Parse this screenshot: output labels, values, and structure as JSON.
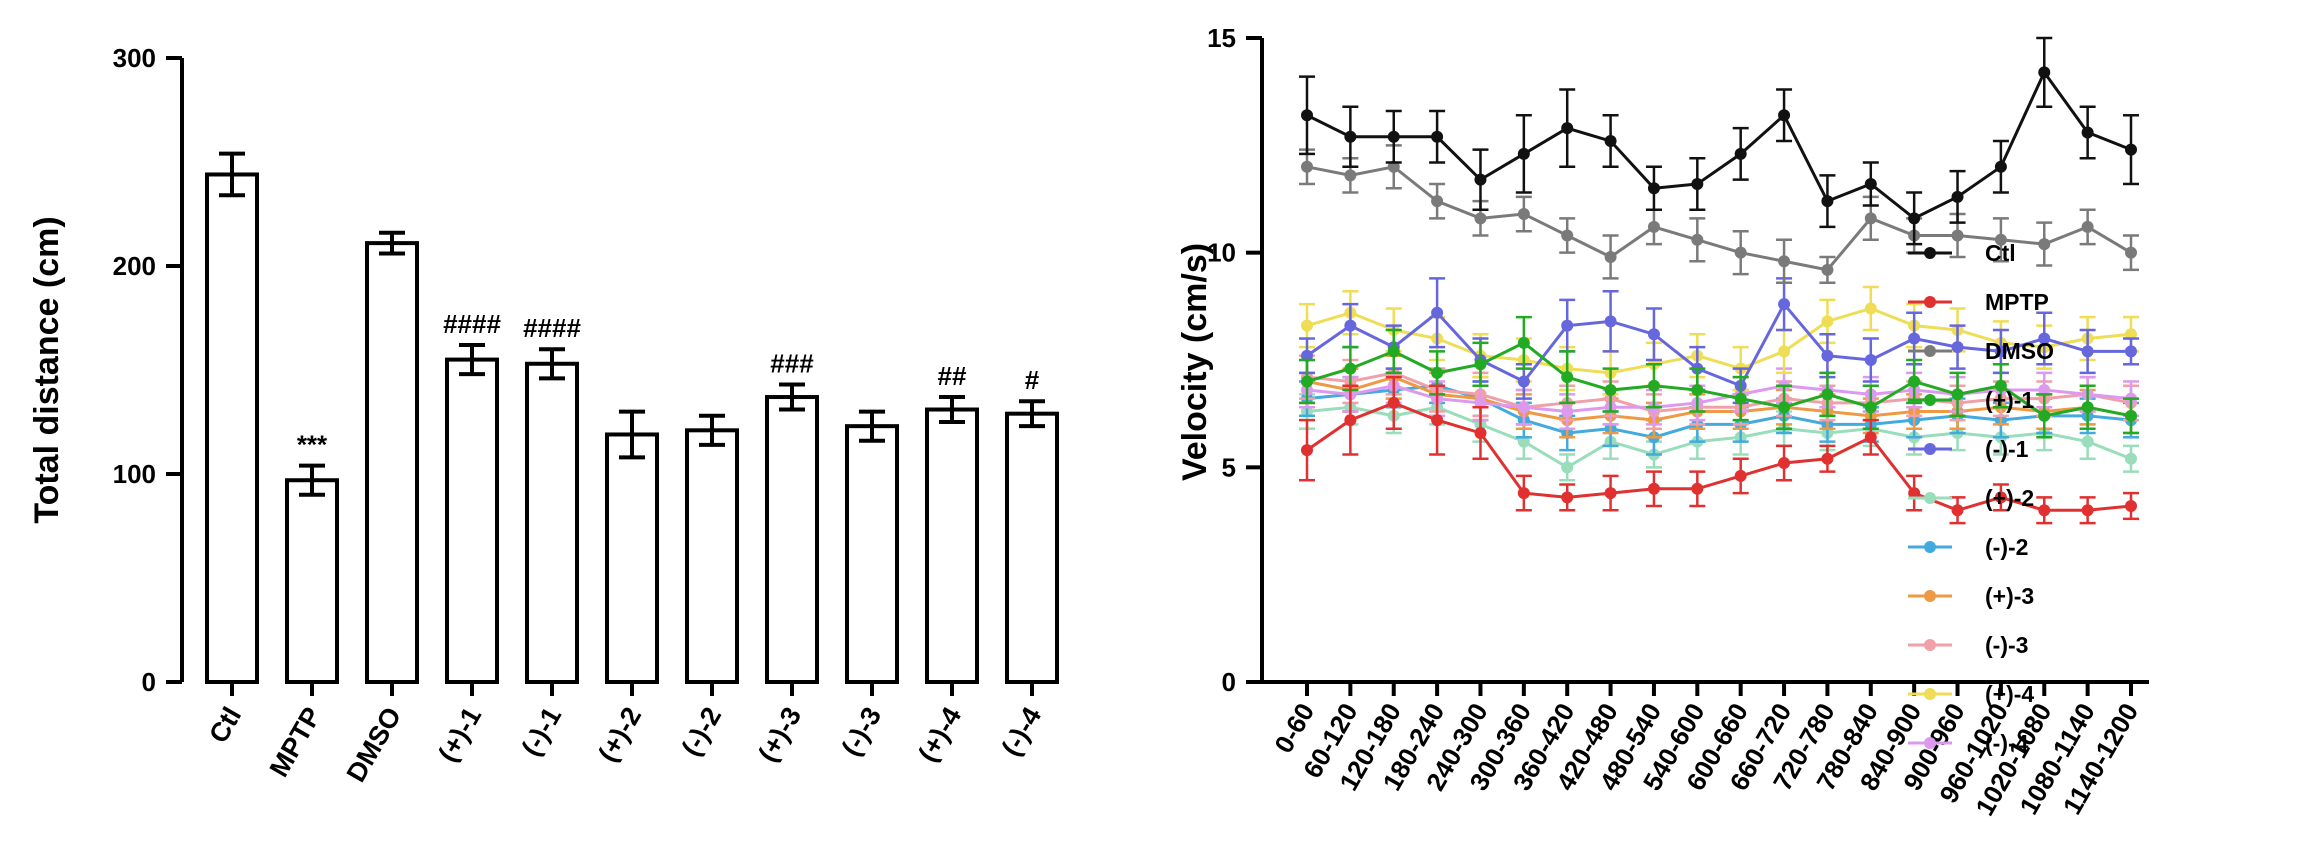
{
  "chart_data": [
    {
      "type": "bar",
      "ylabel": "Total distance (cm)",
      "xlabel": "",
      "ylim": [
        0,
        300
      ],
      "yticks": [
        0,
        100,
        200,
        300
      ],
      "categories": [
        "Ctl",
        "MPTP",
        "DMSO",
        "(+)-1",
        "(-)-1",
        "(+)-2",
        "(-)-2",
        "(+)-3",
        "(-)-3",
        "(+)-4",
        "(-)-4"
      ],
      "values": [
        244,
        97,
        211,
        155,
        153,
        119,
        121,
        137,
        123,
        131,
        129
      ],
      "errors": [
        10,
        7,
        5,
        7,
        7,
        11,
        7,
        6,
        7,
        6,
        6
      ],
      "annotations": [
        "",
        "***",
        "",
        "####",
        "####",
        "",
        "",
        "###",
        "",
        "##",
        "#"
      ]
    },
    {
      "type": "line",
      "ylabel": "Velocity (cm/s)",
      "xlabel": "",
      "ylim": [
        0,
        15
      ],
      "yticks": [
        0,
        5,
        10,
        15
      ],
      "categories": [
        "0-60",
        "60-120",
        "120-180",
        "180-240",
        "240-300",
        "300-360",
        "360-420",
        "420-480",
        "480-540",
        "540-600",
        "600-660",
        "660-720",
        "720-780",
        "780-840",
        "840-900",
        "900-960",
        "960-1020",
        "1020-1080",
        "1080-1140",
        "1140-1200"
      ],
      "legend_position": "right",
      "series": [
        {
          "name": "Ctl",
          "color": "#111111",
          "values": [
            13.2,
            12.7,
            12.7,
            12.7,
            11.7,
            12.3,
            12.9,
            12.6,
            11.5,
            11.6,
            12.3,
            13.2,
            11.2,
            11.6,
            10.8,
            11.3,
            12.0,
            14.2,
            12.8,
            12.4
          ],
          "errors": [
            0.9,
            0.7,
            0.6,
            0.6,
            0.7,
            0.9,
            0.9,
            0.6,
            0.5,
            0.6,
            0.6,
            0.6,
            0.6,
            0.5,
            0.6,
            0.6,
            0.6,
            0.8,
            0.6,
            0.8
          ]
        },
        {
          "name": "MPTP",
          "color": "#e03030",
          "values": [
            5.4,
            6.1,
            6.5,
            6.1,
            5.8,
            4.4,
            4.3,
            4.4,
            4.5,
            4.5,
            4.8,
            5.1,
            5.2,
            5.7,
            4.4,
            4.0,
            4.3,
            4.0,
            4.0,
            4.1
          ],
          "errors": [
            0.7,
            0.8,
            0.6,
            0.8,
            0.6,
            0.4,
            0.3,
            0.4,
            0.4,
            0.4,
            0.4,
            0.4,
            0.3,
            0.4,
            0.4,
            0.3,
            0.3,
            0.3,
            0.3,
            0.3
          ]
        },
        {
          "name": "DMSO",
          "color": "#7a7a7a",
          "values": [
            12.0,
            11.8,
            12.0,
            11.2,
            10.8,
            10.9,
            10.4,
            9.9,
            10.6,
            10.3,
            10.0,
            9.8,
            9.6,
            10.8,
            10.4,
            10.4,
            10.3,
            10.2,
            10.6,
            10.0
          ],
          "errors": [
            0.4,
            0.4,
            0.5,
            0.4,
            0.4,
            0.4,
            0.4,
            0.5,
            0.4,
            0.5,
            0.5,
            0.5,
            0.3,
            0.5,
            0.4,
            0.5,
            0.5,
            0.5,
            0.4,
            0.4
          ]
        },
        {
          "name": "(+)-1",
          "color": "#22aa22",
          "values": [
            7.0,
            7.3,
            7.7,
            7.2,
            7.4,
            7.9,
            7.1,
            6.8,
            6.9,
            6.8,
            6.6,
            6.4,
            6.7,
            6.4,
            7.0,
            6.7,
            6.9,
            6.2,
            6.4,
            6.2
          ],
          "errors": [
            0.5,
            0.5,
            0.5,
            0.5,
            0.5,
            0.6,
            0.6,
            0.5,
            0.5,
            0.5,
            0.5,
            0.5,
            0.5,
            0.5,
            0.5,
            0.5,
            0.5,
            0.5,
            0.5,
            0.4
          ]
        },
        {
          "name": "(-)-1",
          "color": "#6666dd",
          "values": [
            7.6,
            8.3,
            7.8,
            8.6,
            7.5,
            7.0,
            8.3,
            8.4,
            8.1,
            7.3,
            6.9,
            8.8,
            7.6,
            7.5,
            8.0,
            7.8,
            7.7,
            8.0,
            7.7,
            7.7
          ],
          "errors": [
            0.4,
            0.5,
            0.5,
            0.8,
            0.5,
            0.4,
            0.6,
            0.7,
            0.6,
            0.5,
            0.4,
            0.6,
            0.5,
            0.5,
            0.6,
            0.5,
            0.5,
            0.6,
            0.5,
            0.3
          ]
        },
        {
          "name": "(+)-2",
          "color": "#99ddbb",
          "values": [
            6.3,
            6.4,
            6.2,
            6.4,
            6.0,
            5.6,
            5.0,
            5.6,
            5.3,
            5.6,
            5.7,
            5.9,
            5.8,
            5.9,
            5.7,
            5.8,
            5.7,
            5.8,
            5.6,
            5.2
          ],
          "errors": [
            0.4,
            0.4,
            0.4,
            0.4,
            0.4,
            0.4,
            0.3,
            0.4,
            0.3,
            0.4,
            0.4,
            0.4,
            0.4,
            0.4,
            0.4,
            0.4,
            0.4,
            0.4,
            0.4,
            0.3
          ]
        },
        {
          "name": "(-)-2",
          "color": "#44aadd",
          "values": [
            6.6,
            6.7,
            6.8,
            6.9,
            6.6,
            6.1,
            5.8,
            5.9,
            5.7,
            6.0,
            6.0,
            6.2,
            6.0,
            6.0,
            6.1,
            6.2,
            6.1,
            6.2,
            6.2,
            6.1
          ],
          "errors": [
            0.4,
            0.4,
            0.4,
            0.4,
            0.4,
            0.4,
            0.4,
            0.4,
            0.4,
            0.4,
            0.4,
            0.4,
            0.4,
            0.4,
            0.4,
            0.4,
            0.4,
            0.4,
            0.4,
            0.4
          ]
        },
        {
          "name": "(+)-3",
          "color": "#ee9944",
          "values": [
            7.0,
            6.8,
            7.1,
            6.7,
            6.6,
            6.3,
            6.1,
            6.2,
            6.1,
            6.3,
            6.3,
            6.4,
            6.3,
            6.2,
            6.3,
            6.3,
            6.4,
            6.3,
            6.4,
            6.2
          ],
          "errors": [
            0.5,
            0.5,
            0.5,
            0.5,
            0.5,
            0.4,
            0.4,
            0.4,
            0.4,
            0.4,
            0.4,
            0.4,
            0.4,
            0.4,
            0.4,
            0.4,
            0.4,
            0.4,
            0.4,
            0.4
          ]
        },
        {
          "name": "(-)-3",
          "color": "#f0a0a8",
          "values": [
            7.1,
            7.0,
            7.2,
            6.8,
            6.7,
            6.4,
            6.5,
            6.6,
            6.3,
            6.4,
            6.4,
            6.6,
            6.5,
            6.5,
            6.6,
            6.5,
            6.6,
            6.6,
            6.7,
            6.5
          ],
          "errors": [
            0.5,
            0.5,
            0.5,
            0.5,
            0.5,
            0.4,
            0.4,
            0.4,
            0.4,
            0.4,
            0.4,
            0.4,
            0.4,
            0.4,
            0.4,
            0.4,
            0.4,
            0.4,
            0.4,
            0.4
          ]
        },
        {
          "name": "(+)-4",
          "color": "#eedd55",
          "values": [
            8.3,
            8.6,
            8.2,
            8.0,
            7.6,
            7.5,
            7.3,
            7.2,
            7.4,
            7.6,
            7.3,
            7.7,
            8.4,
            8.7,
            8.3,
            8.2,
            7.9,
            7.8,
            8.0,
            8.1
          ],
          "errors": [
            0.5,
            0.5,
            0.5,
            0.5,
            0.5,
            0.5,
            0.5,
            0.5,
            0.5,
            0.5,
            0.5,
            0.5,
            0.5,
            0.5,
            0.5,
            0.5,
            0.5,
            0.5,
            0.5,
            0.4
          ]
        },
        {
          "name": "(-)-4",
          "color": "#dd99ee",
          "values": [
            6.8,
            6.7,
            6.9,
            6.6,
            6.5,
            6.4,
            6.3,
            6.4,
            6.4,
            6.5,
            6.7,
            6.9,
            6.8,
            6.7,
            6.8,
            6.7,
            6.8,
            6.8,
            6.7,
            6.6
          ],
          "errors": [
            0.4,
            0.4,
            0.4,
            0.4,
            0.4,
            0.4,
            0.4,
            0.4,
            0.4,
            0.4,
            0.4,
            0.4,
            0.4,
            0.4,
            0.4,
            0.4,
            0.4,
            0.4,
            0.4,
            0.4
          ]
        }
      ]
    }
  ]
}
